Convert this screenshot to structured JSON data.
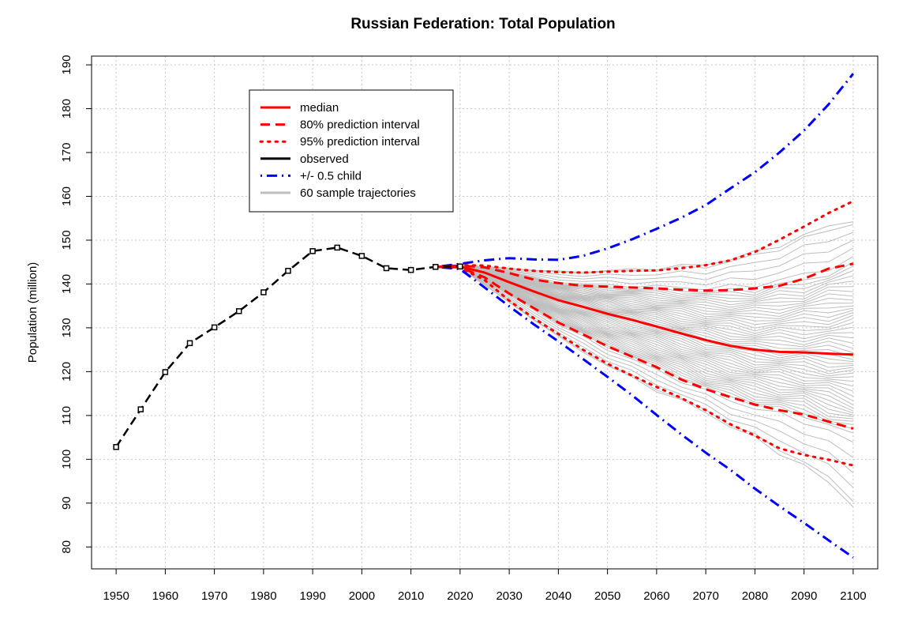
{
  "chart_data": {
    "type": "line",
    "title": "Russian Federation: Total Population",
    "xlabel": "",
    "ylabel": "Population (million)",
    "xlim": [
      1945,
      2105
    ],
    "ylim": [
      75,
      192
    ],
    "x_ticks": [
      1950,
      1960,
      1970,
      1980,
      1990,
      2000,
      2010,
      2020,
      2030,
      2040,
      2050,
      2060,
      2070,
      2080,
      2090,
      2100
    ],
    "y_ticks": [
      80,
      90,
      100,
      110,
      120,
      130,
      140,
      150,
      160,
      170,
      180,
      190
    ],
    "x_tick_labels": [
      "1950",
      "1960",
      "1970",
      "1980",
      "1990",
      "2000",
      "2010",
      "2020",
      "2030",
      "2040",
      "2050",
      "2060",
      "2070",
      "2080",
      "2090",
      "2100"
    ],
    "y_tick_labels": [
      "80",
      "90",
      "100",
      "110",
      "120",
      "130",
      "140",
      "150",
      "160",
      "170",
      "180",
      "190"
    ],
    "grid": true,
    "legend_position": "top-left",
    "legend": [
      {
        "label": "median",
        "color": "#ff0000",
        "style": "solid"
      },
      {
        "label": "80% prediction interval",
        "color": "#ff0000",
        "style": "dashed"
      },
      {
        "label": "95% prediction interval",
        "color": "#ff0000",
        "style": "dotted"
      },
      {
        "label": "observed",
        "color": "#000000",
        "style": "solid"
      },
      {
        "label": "+/- 0.5 child",
        "color": "#0000ff",
        "style": "dotdash"
      },
      {
        "label": "60 sample trajectories",
        "color": "#bebebe",
        "style": "solid"
      }
    ],
    "series": [
      {
        "name": "observed",
        "color": "#000000",
        "style": "dashed-points",
        "x": [
          1950,
          1955,
          1960,
          1965,
          1970,
          1975,
          1980,
          1985,
          1990,
          1995,
          2000,
          2005,
          2010,
          2015,
          2020
        ],
        "y": [
          102.8,
          111.4,
          119.9,
          126.5,
          130.1,
          133.8,
          138.1,
          143.0,
          147.5,
          148.3,
          146.4,
          143.6,
          143.2,
          143.9,
          144.0
        ]
      },
      {
        "name": "median",
        "color": "#ff0000",
        "style": "solid",
        "x": [
          2015,
          2020,
          2025,
          2030,
          2035,
          2040,
          2045,
          2050,
          2055,
          2060,
          2065,
          2070,
          2075,
          2080,
          2085,
          2090,
          2095,
          2100
        ],
        "y": [
          143.9,
          144.0,
          142.6,
          140.4,
          138.3,
          136.3,
          134.8,
          133.2,
          131.8,
          130.3,
          128.7,
          127.2,
          125.9,
          125.0,
          124.5,
          124.4,
          124.1,
          123.9
        ]
      },
      {
        "name": "80% upper",
        "color": "#ff0000",
        "style": "dashed",
        "x": [
          2015,
          2020,
          2025,
          2030,
          2035,
          2040,
          2045,
          2050,
          2055,
          2060,
          2065,
          2070,
          2075,
          2080,
          2085,
          2090,
          2095,
          2100
        ],
        "y": [
          143.9,
          144.2,
          143.8,
          142.5,
          141.0,
          140.2,
          139.6,
          139.4,
          139.2,
          139.0,
          138.7,
          138.5,
          138.6,
          139.0,
          139.6,
          141.2,
          143.5,
          144.6
        ]
      },
      {
        "name": "80% lower",
        "color": "#ff0000",
        "style": "dashed",
        "x": [
          2015,
          2020,
          2025,
          2030,
          2035,
          2040,
          2045,
          2050,
          2055,
          2060,
          2065,
          2070,
          2075,
          2080,
          2085,
          2090,
          2095,
          2100
        ],
        "y": [
          143.9,
          143.8,
          141.5,
          137.8,
          134.5,
          131.2,
          128.5,
          125.8,
          123.4,
          121.0,
          118.2,
          116.0,
          114.2,
          112.5,
          111.2,
          110.2,
          108.6,
          107.0
        ]
      },
      {
        "name": "95% upper",
        "color": "#ff0000",
        "style": "dotted",
        "x": [
          2015,
          2020,
          2025,
          2030,
          2035,
          2040,
          2045,
          2050,
          2055,
          2060,
          2065,
          2070,
          2075,
          2080,
          2085,
          2090,
          2095,
          2100
        ],
        "y": [
          143.9,
          144.3,
          144.2,
          143.5,
          143.0,
          142.7,
          142.6,
          142.8,
          143.0,
          143.1,
          143.6,
          144.3,
          145.4,
          147.3,
          150.1,
          153.1,
          156.2,
          158.9
        ]
      },
      {
        "name": "95% lower",
        "color": "#ff0000",
        "style": "dotted",
        "x": [
          2015,
          2020,
          2025,
          2030,
          2035,
          2040,
          2045,
          2050,
          2055,
          2060,
          2065,
          2070,
          2075,
          2080,
          2085,
          2090,
          2095,
          2100
        ],
        "y": [
          143.9,
          143.7,
          140.9,
          136.2,
          132.2,
          128.6,
          125.0,
          121.8,
          119.1,
          116.5,
          114.0,
          111.2,
          108.0,
          105.4,
          102.5,
          101.0,
          99.9,
          98.6
        ]
      },
      {
        "name": "+0.5 child",
        "color": "#0000ff",
        "style": "dotdash",
        "x": [
          2015,
          2020,
          2025,
          2030,
          2035,
          2040,
          2045,
          2050,
          2055,
          2060,
          2065,
          2070,
          2075,
          2080,
          2085,
          2090,
          2095,
          2100
        ],
        "y": [
          143.9,
          144.6,
          145.4,
          145.9,
          145.6,
          145.5,
          146.4,
          148.1,
          150.2,
          152.6,
          155.1,
          158.0,
          161.8,
          165.5,
          170.0,
          175.0,
          181.0,
          188.0
        ]
      },
      {
        "name": "-0.5 child",
        "color": "#0000ff",
        "style": "dotdash",
        "x": [
          2015,
          2020,
          2025,
          2030,
          2035,
          2040,
          2045,
          2050,
          2055,
          2060,
          2065,
          2070,
          2075,
          2080,
          2085,
          2090,
          2095,
          2100
        ],
        "y": [
          143.9,
          143.4,
          139.2,
          134.9,
          130.8,
          126.9,
          122.9,
          118.8,
          114.6,
          110.1,
          105.7,
          101.5,
          97.6,
          93.3,
          89.3,
          85.5,
          81.5,
          77.6
        ]
      }
    ],
    "sample_trajectories": {
      "name": "60 sample trajectories",
      "color": "#bebebe",
      "count": 60,
      "x": [
        2020,
        2030,
        2040,
        2050,
        2060,
        2070,
        2080,
        2090,
        2100
      ],
      "quantiles": {
        "p02": [
          143.6,
          135.8,
          127.9,
          121.3,
          115.8,
          110.7,
          104.6,
          98.6,
          90.0
        ],
        "p10": [
          143.8,
          137.6,
          131.0,
          125.5,
          120.8,
          115.9,
          112.3,
          109.8,
          105.0
        ],
        "p50": [
          144.0,
          140.4,
          136.3,
          133.2,
          130.3,
          127.2,
          125.0,
          124.4,
          123.9
        ],
        "p90": [
          144.2,
          142.6,
          140.2,
          139.4,
          139.0,
          138.5,
          139.0,
          141.2,
          144.6
        ],
        "p98": [
          144.3,
          143.6,
          142.8,
          143.0,
          143.6,
          144.5,
          147.0,
          151.0,
          155.0
        ]
      }
    }
  }
}
